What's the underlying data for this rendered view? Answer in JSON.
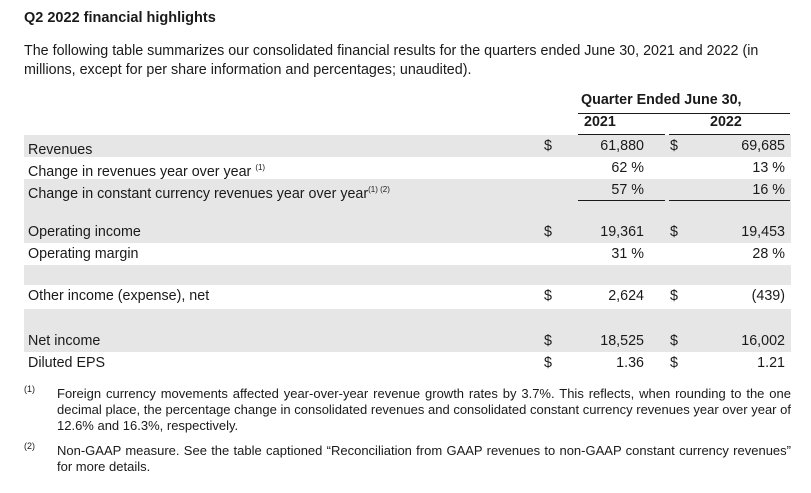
{
  "title": "Q2 2022 financial highlights",
  "intro": "The following table summarizes our consolidated financial results for the quarters ended June 30, 2021 and 2022 (in millions, except for per share information and percentages; unaudited).",
  "table": {
    "period_header": "Quarter Ended June 30,",
    "year1": "2021",
    "year2": "2022",
    "rows": [
      {
        "label": "Revenues",
        "sup": "",
        "cur1": "$",
        "v1": "61,880",
        "cur2": "$",
        "v2": "69,685"
      },
      {
        "label": "Change in revenues year over year",
        "sup": "(1)",
        "cur1": "",
        "v1": "62 %",
        "cur2": "",
        "v2": "13 %"
      },
      {
        "label": "Change in constant currency revenues year over year",
        "sup": "(1) (2)",
        "cur1": "",
        "v1": "57 %",
        "cur2": "",
        "v2": "16 %"
      },
      {
        "label": "Operating income",
        "sup": "",
        "cur1": "$",
        "v1": "19,361",
        "cur2": "$",
        "v2": "19,453"
      },
      {
        "label": "Operating margin",
        "sup": "",
        "cur1": "",
        "v1": "31 %",
        "cur2": "",
        "v2": "28 %"
      },
      {
        "label": "Other income (expense), net",
        "sup": "",
        "cur1": "$",
        "v1": "2,624",
        "cur2": "$",
        "v2": "(439)"
      },
      {
        "label": "Net income",
        "sup": "",
        "cur1": "$",
        "v1": "18,525",
        "cur2": "$",
        "v2": "16,002"
      },
      {
        "label": "Diluted EPS",
        "sup": "",
        "cur1": "$",
        "v1": "1.36",
        "cur2": "$",
        "v2": "1.21"
      }
    ]
  },
  "footnotes": [
    {
      "mark": "(1)",
      "text": "Foreign currency movements affected year-over-year revenue growth rates by 3.7%. This reflects, when rounding to the one decimal place, the percentage change in consolidated revenues and consolidated constant currency revenues year over year of 12.6% and 16.3%, respectively."
    },
    {
      "mark": "(2)",
      "text": "Non-GAAP measure. See the table captioned “Reconciliation from GAAP revenues to non-GAAP constant currency revenues” for more details."
    }
  ]
}
